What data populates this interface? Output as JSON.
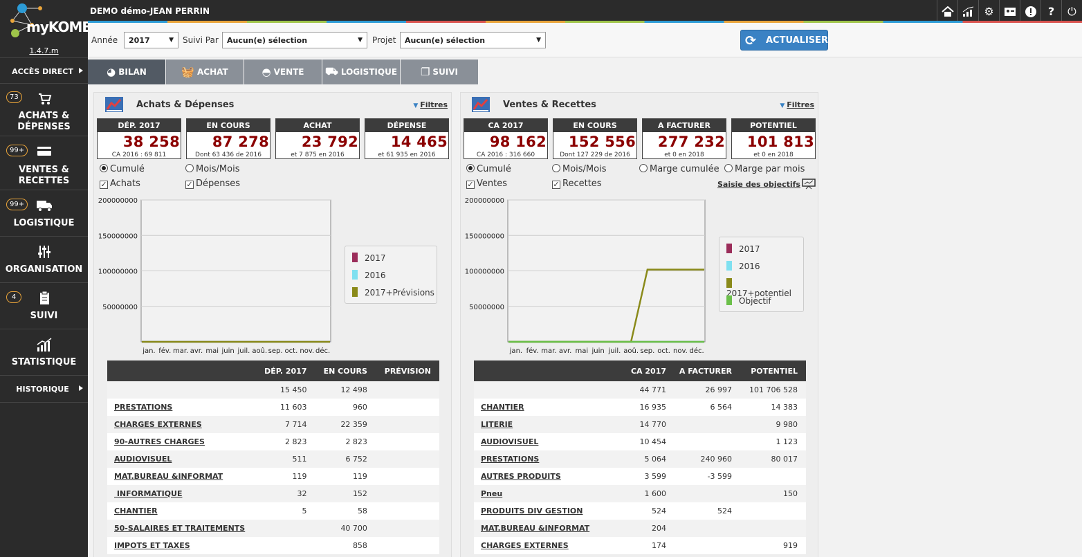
{
  "app": {
    "title": "DEMO démo-JEAN PERRIN",
    "logo_text": "myKOMELA",
    "version": "1.4.7.m"
  },
  "sidebar": {
    "direct_access": "ACCÈS DIRECT",
    "items": [
      {
        "badge": "73",
        "label1": "ACHATS &",
        "label2": "DÉPENSES",
        "icon": "cart-icon"
      },
      {
        "badge": "99+",
        "label1": "VENTES &",
        "label2": "RECETTES",
        "icon": "credit-card-icon"
      },
      {
        "badge": "99+",
        "label1": "LOGISTIQUE",
        "icon": "truck-icon"
      },
      {
        "badge": "",
        "label1": "ORGANISATION",
        "icon": "sliders-icon"
      },
      {
        "badge": "4",
        "label1": "SUIVI",
        "icon": "clipboard-icon"
      },
      {
        "badge": "",
        "label1": "STATISTIQUE",
        "icon": "stats-icon"
      }
    ],
    "history": "HISTORIQUE"
  },
  "topicons": [
    "home-icon",
    "signal-icon",
    "gear-icon",
    "id-card-icon",
    "alert-icon",
    "help-icon",
    "power-icon"
  ],
  "filters": {
    "annee_label": "Année",
    "annee_value": "2017",
    "suivi_label": "Suivi Par",
    "suivi_value": "Aucun(e) sélection",
    "projet_label": "Projet",
    "projet_value": "Aucun(e) sélection",
    "refresh": "ACTUALISER"
  },
  "tabs": [
    {
      "label": "BILAN"
    },
    {
      "label": "ACHAT"
    },
    {
      "label": "VENTE"
    },
    {
      "label": "LOGISTIQUE"
    },
    {
      "label": "SUIVI"
    }
  ],
  "left": {
    "title": "Achats & Dépenses",
    "filters": "Filtres",
    "kpis": [
      {
        "head": "DÉP. 2017",
        "value": "38 258",
        "sub": "CA 2016 : 69 811"
      },
      {
        "head": "EN COURS",
        "value": "87 278",
        "sub": "Dont 63 436 de 2016"
      },
      {
        "head": "ACHAT",
        "value": "23 792",
        "sub": "et 7 875 en 2016"
      },
      {
        "head": "DÉPENSE",
        "value": "14 465",
        "sub": "et 61 935 en 2016"
      }
    ],
    "radio1": "Cumulé",
    "radio2": "Mois/Mois",
    "check1": "Achats",
    "check2": "Dépenses",
    "table": {
      "headers": [
        "",
        "DÉP. 2017",
        "EN COURS",
        "PRÉVISION"
      ],
      "rows": [
        [
          "",
          "15 450",
          "12 498",
          ""
        ],
        [
          "PRESTATIONS",
          "11 603",
          "960",
          ""
        ],
        [
          "CHARGES EXTERNES",
          "7 714",
          "22 359",
          ""
        ],
        [
          "90-AUTRES CHARGES",
          "2 823",
          "2 823",
          ""
        ],
        [
          "AUDIOVISUEL",
          "511",
          "6 752",
          ""
        ],
        [
          "MAT.BUREAU &INFORMAT",
          "119",
          "119",
          ""
        ],
        [
          " INFORMATIQUE",
          "32",
          "152",
          ""
        ],
        [
          "CHANTIER",
          "5",
          "58",
          ""
        ],
        [
          "50-SALAIRES ET TRAITEMENTS",
          "",
          "40 700",
          ""
        ],
        [
          "IMPOTS ET TAXES",
          "",
          "858",
          ""
        ]
      ]
    }
  },
  "right": {
    "title": "Ventes & Recettes",
    "filters": "Filtres",
    "kpis": [
      {
        "head": "CA 2017",
        "value": "98 162",
        "sub": "CA 2016 : 316 660"
      },
      {
        "head": "EN COURS",
        "value": "152 556",
        "sub": "Dont 127 229 de 2016"
      },
      {
        "head": "A FACTURER",
        "value": "277 232",
        "sub": "et 0 en 2018"
      },
      {
        "head": "POTENTIEL",
        "value": "101 813",
        "sub": "et 0 en 2018"
      }
    ],
    "radio1": "Cumulé",
    "radio2": "Mois/Mois",
    "radio3": "Marge cumulée",
    "radio4": "Marge par mois",
    "check1": "Ventes",
    "check2": "Recettes",
    "objectives_link": "Saisie des objectifs",
    "table": {
      "headers": [
        "",
        "CA 2017",
        "A FACTURER",
        "POTENTIEL"
      ],
      "rows": [
        [
          "",
          "44 771",
          "26 997",
          "101 706 528"
        ],
        [
          "CHANTIER",
          "16 935",
          "6 564",
          "14 383"
        ],
        [
          "LITERIE",
          "14 770",
          "",
          "9 980"
        ],
        [
          "AUDIOVISUEL",
          "10 454",
          "",
          "1 123"
        ],
        [
          "PRESTATIONS",
          "5 064",
          "240 960",
          "80 017"
        ],
        [
          "AUTRES PRODUITS",
          "3 599",
          "-3 599",
          ""
        ],
        [
          "Pneu",
          "1 600",
          "",
          "150"
        ],
        [
          "PRODUITS DIV GESTION",
          "524",
          "524",
          ""
        ],
        [
          "MAT.BUREAU &INFORMAT",
          "204",
          "",
          ""
        ],
        [
          "CHARGES EXTERNES",
          "174",
          "",
          "919"
        ]
      ]
    }
  },
  "chart_data": [
    {
      "type": "line",
      "title": "Achats & Dépenses",
      "categories": [
        "jan.",
        "fév.",
        "mar.",
        "avr.",
        "mai",
        "juin",
        "juil.",
        "aoû.",
        "sep.",
        "oct.",
        "nov.",
        "déc."
      ],
      "ylim": [
        0,
        200000000
      ],
      "yticks": [
        "200000000",
        "150000000",
        "100000000",
        "50000000"
      ],
      "ytick_values": [
        200000000,
        150000000,
        100000000,
        50000000
      ],
      "series": [
        {
          "name": "2017",
          "color": "#9b2d5a",
          "values": [
            0,
            0,
            0,
            0,
            0,
            0,
            0,
            0,
            0,
            0,
            0,
            0
          ]
        },
        {
          "name": "2016",
          "color": "#7fe0f0",
          "values": [
            0,
            0,
            0,
            0,
            0,
            0,
            0,
            0,
            0,
            0,
            0,
            0
          ]
        },
        {
          "name": "2017+Prévisions",
          "color": "#8a8a1a",
          "values": [
            0,
            0,
            0,
            0,
            0,
            0,
            0,
            0,
            0,
            0,
            0,
            0
          ]
        }
      ]
    },
    {
      "type": "line",
      "title": "Ventes & Recettes",
      "categories": [
        "jan.",
        "fév.",
        "mar.",
        "avr.",
        "mai",
        "juin",
        "juil.",
        "aoû.",
        "sep.",
        "oct.",
        "nov.",
        "déc."
      ],
      "ylim": [
        0,
        200000000
      ],
      "yticks": [
        "200000000",
        "150000000",
        "100000000",
        "50000000"
      ],
      "ytick_values": [
        200000000,
        150000000,
        100000000,
        50000000
      ],
      "series": [
        {
          "name": "2017",
          "color": "#9b2d5a",
          "values": [
            0,
            0,
            0,
            0,
            0,
            0,
            0,
            0,
            0,
            0,
            0,
            0
          ]
        },
        {
          "name": "2016",
          "color": "#7fe0f0",
          "values": [
            0,
            0,
            0,
            0,
            0,
            0,
            0,
            0,
            0,
            0,
            0,
            0
          ]
        },
        {
          "name": "2017+potentiel",
          "color": "#8a8a1a",
          "values": [
            0,
            0,
            0,
            0,
            0,
            0,
            0,
            0,
            101800000,
            101800000,
            101800000,
            101800000
          ]
        },
        {
          "name": "Objectif",
          "color": "#6cc04a",
          "values": [
            0,
            0,
            0,
            0,
            0,
            0,
            0,
            0,
            0,
            0,
            0,
            0
          ]
        }
      ]
    }
  ]
}
